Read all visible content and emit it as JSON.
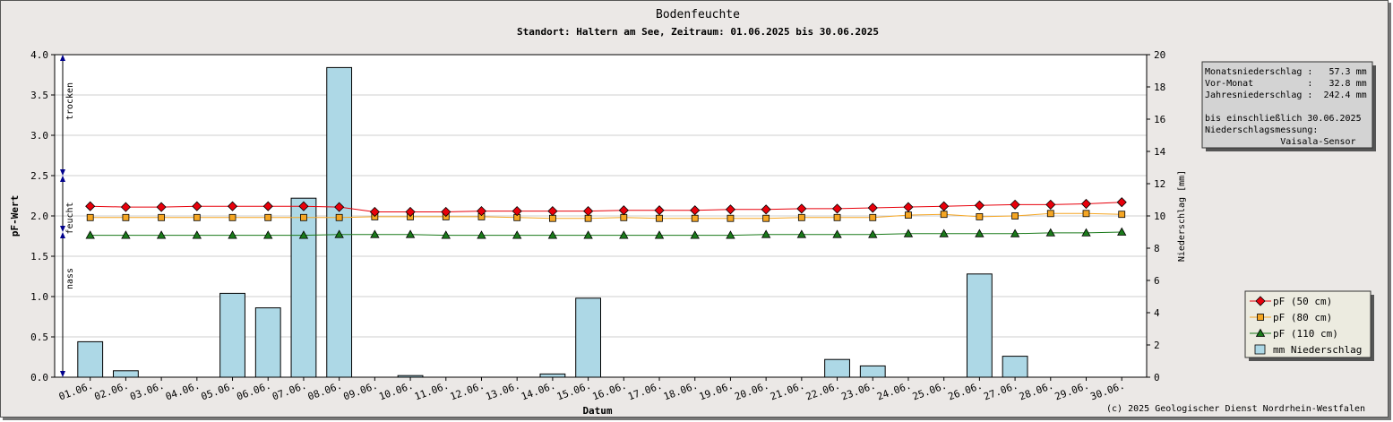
{
  "chart_data": {
    "type": "bar+line",
    "title": "Bodenfeuchte",
    "subtitle": "Standort: Haltern am See, Zeitraum: 01.06.2025 bis 30.06.2025",
    "xlabel": "Datum",
    "ylabel_left": "pF-Wert",
    "ylabel_right": "Niederschlag [mm]",
    "ylim_left": [
      0,
      4
    ],
    "ylim_right": [
      0,
      20
    ],
    "yticks_left": [
      "0.0",
      "0.5",
      "1.0",
      "1.5",
      "2.0",
      "2.5",
      "3.0",
      "3.5",
      "4.0"
    ],
    "yticks_right": [
      "0",
      "2",
      "4",
      "6",
      "8",
      "10",
      "12",
      "14",
      "16",
      "18",
      "20"
    ],
    "grid": true,
    "legend_position": "bottom-right",
    "categories": [
      "01.06.",
      "02.06.",
      "03.06.",
      "04.06.",
      "05.06.",
      "06.06.",
      "07.06.",
      "08.06.",
      "09.06.",
      "10.06.",
      "11.06.",
      "12.06.",
      "13.06.",
      "14.06.",
      "15.06.",
      "16.06.",
      "17.06.",
      "18.06.",
      "19.06.",
      "20.06.",
      "21.06.",
      "22.06.",
      "23.06.",
      "24.06.",
      "25.06.",
      "26.06.",
      "27.06.",
      "28.06.",
      "29.06.",
      "30.06."
    ],
    "series": [
      {
        "name": "pF (50 cm)",
        "type": "line",
        "axis": "left",
        "color": "#e8000b",
        "marker": "diamond",
        "values": [
          2.12,
          2.11,
          2.11,
          2.12,
          2.12,
          2.12,
          2.12,
          2.11,
          2.05,
          2.05,
          2.05,
          2.06,
          2.06,
          2.06,
          2.06,
          2.07,
          2.07,
          2.07,
          2.08,
          2.08,
          2.09,
          2.09,
          2.1,
          2.11,
          2.12,
          2.13,
          2.14,
          2.14,
          2.15,
          2.17
        ]
      },
      {
        "name": "pF (80 cm)",
        "type": "line",
        "axis": "left",
        "color": "#f5a623",
        "marker": "square",
        "values": [
          1.98,
          1.98,
          1.98,
          1.98,
          1.98,
          1.98,
          1.98,
          1.98,
          1.99,
          1.99,
          1.99,
          1.99,
          1.98,
          1.97,
          1.97,
          1.98,
          1.97,
          1.97,
          1.97,
          1.97,
          1.98,
          1.98,
          1.98,
          2.01,
          2.02,
          1.99,
          2.0,
          2.03,
          2.03,
          2.02
        ]
      },
      {
        "name": "pF (110 cm)",
        "type": "line",
        "axis": "left",
        "color": "#1a7a1a",
        "marker": "triangle",
        "values": [
          1.76,
          1.76,
          1.76,
          1.76,
          1.76,
          1.76,
          1.76,
          1.77,
          1.77,
          1.77,
          1.76,
          1.76,
          1.76,
          1.76,
          1.76,
          1.76,
          1.76,
          1.76,
          1.76,
          1.77,
          1.77,
          1.77,
          1.77,
          1.78,
          1.78,
          1.78,
          1.78,
          1.79,
          1.79,
          1.8
        ]
      },
      {
        "name": "mm  Niederschlag",
        "type": "bar",
        "axis": "right",
        "color": "#add8e6",
        "values": [
          2.2,
          0.4,
          0,
          0,
          5.2,
          4.3,
          11.1,
          19.2,
          0,
          0.1,
          0,
          0,
          0,
          0.2,
          4.9,
          0,
          0,
          0,
          0,
          0,
          0,
          1.1,
          0.7,
          0,
          0,
          6.4,
          1.3,
          0,
          0,
          0
        ]
      }
    ],
    "zones": [
      {
        "label": "trocken",
        "from": 2.5,
        "to": 4.0
      },
      {
        "label": "feucht",
        "from": 1.8,
        "to": 2.5
      },
      {
        "label": "nass",
        "from": 0.0,
        "to": 1.8
      }
    ]
  },
  "info_box": {
    "lines": [
      "Monatsniederschlag :   57.3 mm",
      "Vor-Monat          :   32.8 mm",
      "Jahresniederschlag :  242.4 mm",
      "",
      "bis einschließlich 30.06.2025",
      "Niederschlagsmessung:",
      "              Vaisala-Sensor"
    ]
  },
  "copyright": "(c) 2025 Geologischer Dienst Nordrhein-Westfalen"
}
